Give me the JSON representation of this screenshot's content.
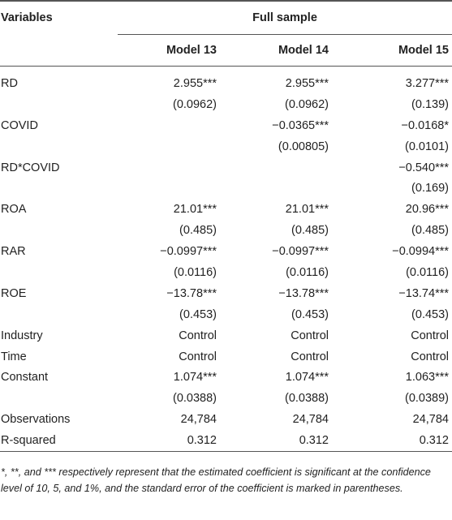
{
  "header": {
    "variables_label": "Variables",
    "group_label": "Full sample",
    "models": [
      "Model 13",
      "Model 14",
      "Model 15"
    ]
  },
  "rows": [
    {
      "label": "RD",
      "values": [
        "2.955***",
        "2.955***",
        "3.277***"
      ]
    },
    {
      "label": "",
      "values": [
        "(0.0962)",
        "(0.0962)",
        "(0.139)"
      ]
    },
    {
      "label": "COVID",
      "values": [
        "",
        "−0.0365***",
        "−0.0168*"
      ]
    },
    {
      "label": "",
      "values": [
        "",
        "(0.00805)",
        "(0.0101)"
      ]
    },
    {
      "label": "RD*COVID",
      "values": [
        "",
        "",
        "−0.540***"
      ]
    },
    {
      "label": "",
      "values": [
        "",
        "",
        "(0.169)"
      ]
    },
    {
      "label": "ROA",
      "values": [
        "21.01***",
        "21.01***",
        "20.96***"
      ]
    },
    {
      "label": "",
      "values": [
        "(0.485)",
        "(0.485)",
        "(0.485)"
      ]
    },
    {
      "label": "RAR",
      "values": [
        "−0.0997***",
        "−0.0997***",
        "−0.0994***"
      ]
    },
    {
      "label": "",
      "values": [
        "(0.0116)",
        "(0.0116)",
        "(0.0116)"
      ]
    },
    {
      "label": "ROE",
      "values": [
        "−13.78***",
        "−13.78***",
        "−13.74***"
      ]
    },
    {
      "label": "",
      "values": [
        "(0.453)",
        "(0.453)",
        "(0.453)"
      ]
    },
    {
      "label": "Industry",
      "values": [
        "Control",
        "Control",
        "Control"
      ]
    },
    {
      "label": "Time",
      "values": [
        "Control",
        "Control",
        "Control"
      ]
    },
    {
      "label": "Constant",
      "values": [
        "1.074***",
        "1.074***",
        "1.063***"
      ]
    },
    {
      "label": "",
      "values": [
        "(0.0388)",
        "(0.0388)",
        "(0.0389)"
      ]
    },
    {
      "label": "Observations",
      "values": [
        "24,784",
        "24,784",
        "24,784"
      ]
    },
    {
      "label": "R-squared",
      "values": [
        "0.312",
        "0.312",
        "0.312"
      ]
    }
  ],
  "footnote": "*, **, and *** respectively represent that the estimated coefficient is significant at the confidence level of 10, 5, and 1%, and the standard error of the coefficient is marked in parentheses."
}
